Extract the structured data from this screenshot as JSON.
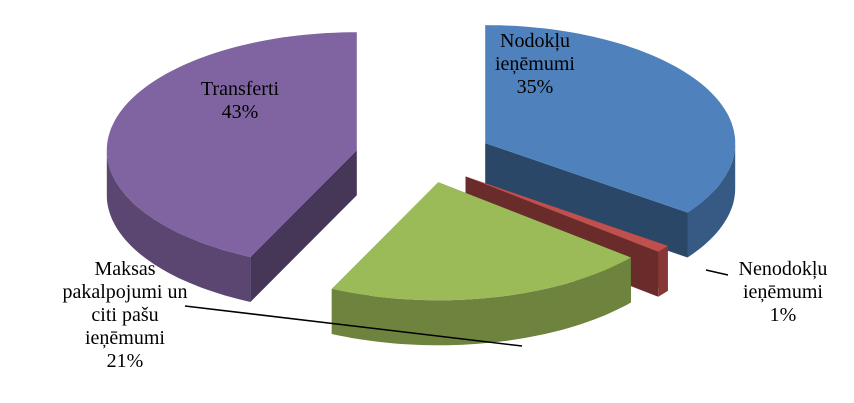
{
  "chart_data": {
    "type": "pie",
    "categories": [
      "Nodokļu ieņēmumi",
      "Nenodokļu ieņēmumi",
      "Maksas pakalpojumi un citi pašu ieņēmumi",
      "Transferti"
    ],
    "values": [
      35,
      1,
      21,
      43
    ],
    "value_labels": [
      "35%",
      "1%",
      "21%",
      "43%"
    ],
    "colors": [
      "#4f81bd",
      "#c0504d",
      "#9bbb59",
      "#8064a2"
    ]
  }
}
